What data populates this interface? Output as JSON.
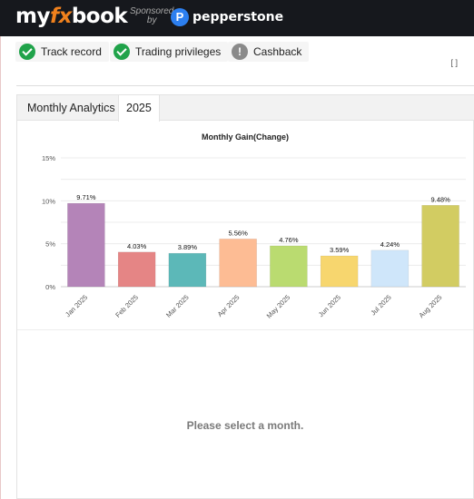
{
  "header": {
    "logo_my": "my",
    "logo_fx": "fx",
    "logo_book": "book",
    "sponsored_line1": "Sponsored",
    "sponsored_line2": "by",
    "sponsor_icon_glyph": "P",
    "sponsor_name": "pepperstone"
  },
  "badges": [
    {
      "label": "Track record",
      "status": "ok"
    },
    {
      "label": "Trading privileges",
      "status": "ok"
    },
    {
      "label": "Cashback",
      "status": "na",
      "glyph": "!"
    }
  ],
  "right_fragment": "[ ]",
  "tabs": [
    {
      "label": "Monthly Analytics",
      "active": false
    },
    {
      "label": "2025",
      "active": true
    }
  ],
  "chart_data": {
    "type": "bar",
    "title": "Monthly Gain(Change)",
    "categories": [
      "Jan 2025",
      "Feb 2025",
      "Mar 2025",
      "Apr 2025",
      "May 2025",
      "Jun 2025",
      "Jul 2025",
      "Aug 2025"
    ],
    "values": [
      9.71,
      4.03,
      3.89,
      5.56,
      4.76,
      3.59,
      4.24,
      9.48
    ],
    "labels": [
      "9.71%",
      "4.03%",
      "3.89%",
      "5.56%",
      "4.76%",
      "3.59%",
      "4.24%",
      "9.48%"
    ],
    "colors": [
      "#b484b8",
      "#e58585",
      "#5cb8b8",
      "#fdbc94",
      "#badb70",
      "#f7d66e",
      "#cfe6fa",
      "#d2cc62"
    ],
    "yticks": [
      "0%",
      "5%",
      "10%",
      "15%"
    ],
    "ylim": [
      0,
      15
    ],
    "grid": true
  },
  "message": "Please select a month."
}
